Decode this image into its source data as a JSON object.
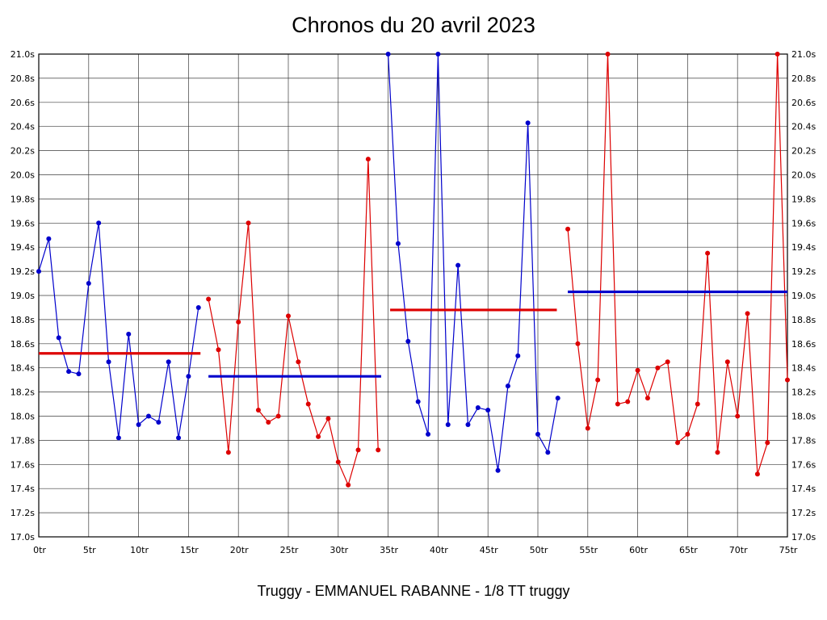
{
  "chart_data": {
    "type": "line",
    "title": "Chronos du 20 avril 2023",
    "footer": "Truggy - EMMANUEL RABANNE - 1/8 TT truggy",
    "unit_y": "s",
    "unit_x": "tr",
    "xlim": [
      0,
      75
    ],
    "ylim": [
      17.0,
      21.0
    ],
    "y_tick_step": 0.2,
    "grid": true,
    "legend": "none",
    "y_tick_labels": [
      "21.0s",
      "20.8s",
      "20.6s",
      "20.4s",
      "20.2s",
      "20.0s",
      "19.8s",
      "19.6s",
      "19.4s",
      "19.2s",
      "19.0s",
      "18.8s",
      "18.6s",
      "18.4s",
      "18.2s",
      "18.0s",
      "17.8s",
      "17.6s",
      "17.4s",
      "17.2s",
      "17.0s"
    ],
    "x_ticks": [
      {
        "value": 0,
        "label": "0tr"
      },
      {
        "value": 5,
        "label": "5tr"
      },
      {
        "value": 10,
        "label": "10tr"
      },
      {
        "value": 15,
        "label": "15tr"
      },
      {
        "value": 20,
        "label": "20tr"
      },
      {
        "value": 25,
        "label": "25tr"
      },
      {
        "value": 30,
        "label": "30tr"
      },
      {
        "value": 35,
        "label": "35tr"
      },
      {
        "value": 40,
        "label": "40tr"
      },
      {
        "value": 45,
        "label": "45tr"
      },
      {
        "value": 50,
        "label": "50tr"
      },
      {
        "value": 55,
        "label": "55tr"
      },
      {
        "value": 60,
        "label": "60tr"
      },
      {
        "value": 65,
        "label": "65tr"
      },
      {
        "value": 70,
        "label": "70tr"
      },
      {
        "value": 75,
        "label": "75tr"
      }
    ],
    "colors": {
      "blue": "#0000cc",
      "red": "#dd0000",
      "grid": "#3c3c3c",
      "axis": "#000000"
    },
    "segments": [
      {
        "name": "run-1",
        "color": "blue",
        "start_lap": 0,
        "values": [
          19.2,
          19.47,
          18.65,
          18.37,
          18.35,
          19.1,
          19.6,
          18.45,
          17.82,
          18.68,
          17.93,
          18.0,
          17.95,
          18.45,
          17.82,
          18.33,
          18.9
        ],
        "avg": {
          "value": 18.52,
          "color": "red",
          "from": 0,
          "to": 16.2
        }
      },
      {
        "name": "run-2",
        "color": "red",
        "start_lap": 17,
        "values": [
          18.97,
          18.55,
          17.7,
          18.78,
          19.6,
          18.05,
          17.95,
          18.0,
          18.83,
          18.45,
          18.1,
          17.83,
          17.98,
          17.62,
          17.43,
          17.72,
          20.13,
          17.72
        ],
        "avg": {
          "value": 18.33,
          "color": "blue",
          "from": 17,
          "to": 34.3
        }
      },
      {
        "name": "run-3",
        "color": "blue",
        "start_lap": 35,
        "values": [
          21.0,
          19.43,
          18.62,
          18.12,
          17.85,
          21.0,
          17.93,
          19.25,
          17.93,
          18.07,
          18.05,
          17.55,
          18.25,
          18.5,
          20.43,
          17.85,
          17.7,
          18.15
        ],
        "avg": {
          "value": 18.88,
          "color": "red",
          "from": 35.2,
          "to": 51.9
        }
      },
      {
        "name": "run-4",
        "color": "red",
        "start_lap": 53,
        "values": [
          19.55,
          18.6,
          17.9,
          18.3,
          21.0,
          18.1,
          18.12,
          18.38,
          18.15,
          18.4,
          18.45,
          17.78,
          17.85,
          18.1,
          19.35,
          17.7,
          18.45,
          18.0,
          18.85,
          17.52,
          17.78,
          21.0,
          18.3
        ],
        "avg": {
          "value": 19.03,
          "color": "blue",
          "from": 53,
          "to": 75
        }
      }
    ]
  }
}
